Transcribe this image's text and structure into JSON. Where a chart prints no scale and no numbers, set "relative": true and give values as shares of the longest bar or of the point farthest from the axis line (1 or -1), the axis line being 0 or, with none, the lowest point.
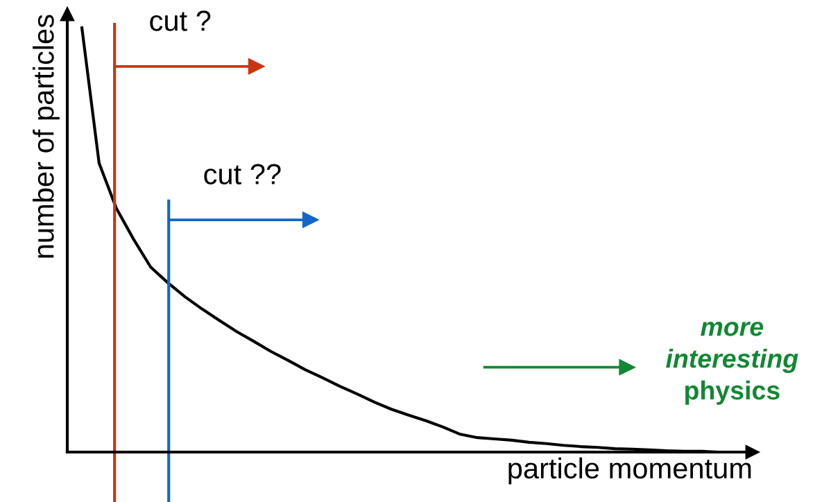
{
  "chart_data": {
    "type": "line",
    "relative": true,
    "xlabel": "particle momentum",
    "ylabel": "number of particles",
    "categories": [
      null,
      null,
      null,
      null,
      null,
      null,
      null,
      null,
      null,
      null,
      null,
      null,
      null,
      null,
      null,
      null,
      null,
      null,
      null,
      null,
      null,
      null,
      null,
      null,
      null,
      null,
      null,
      null,
      null,
      null,
      null,
      null,
      null,
      null,
      null,
      null,
      null,
      null,
      null
    ],
    "series": [
      {
        "color": "#000000",
        "values": [
          1.0,
          0.681,
          0.575,
          0.502,
          0.436,
          0.399,
          0.366,
          0.337,
          0.31,
          0.284,
          0.261,
          0.237,
          0.216,
          0.194,
          0.175,
          0.155,
          0.137,
          0.118,
          0.101,
          0.087,
          0.074,
          0.059,
          0.042,
          0.034,
          0.031,
          0.028,
          0.023,
          0.02,
          0.016,
          0.013,
          0.011,
          0.008,
          0.007,
          0.005,
          0.003,
          0.002,
          0.002,
          0.0,
          0.0
        ]
      }
    ],
    "legend": false,
    "marker": "none",
    "line_style": "solid",
    "ref_lines": [
      {
        "axis": "x",
        "label": "cut ?",
        "color": "#cc3311"
      },
      {
        "axis": "x",
        "label": "cut ??",
        "color": "#1166cc"
      }
    ],
    "annotations": [
      "more\ninteresting\nphysics"
    ]
  }
}
